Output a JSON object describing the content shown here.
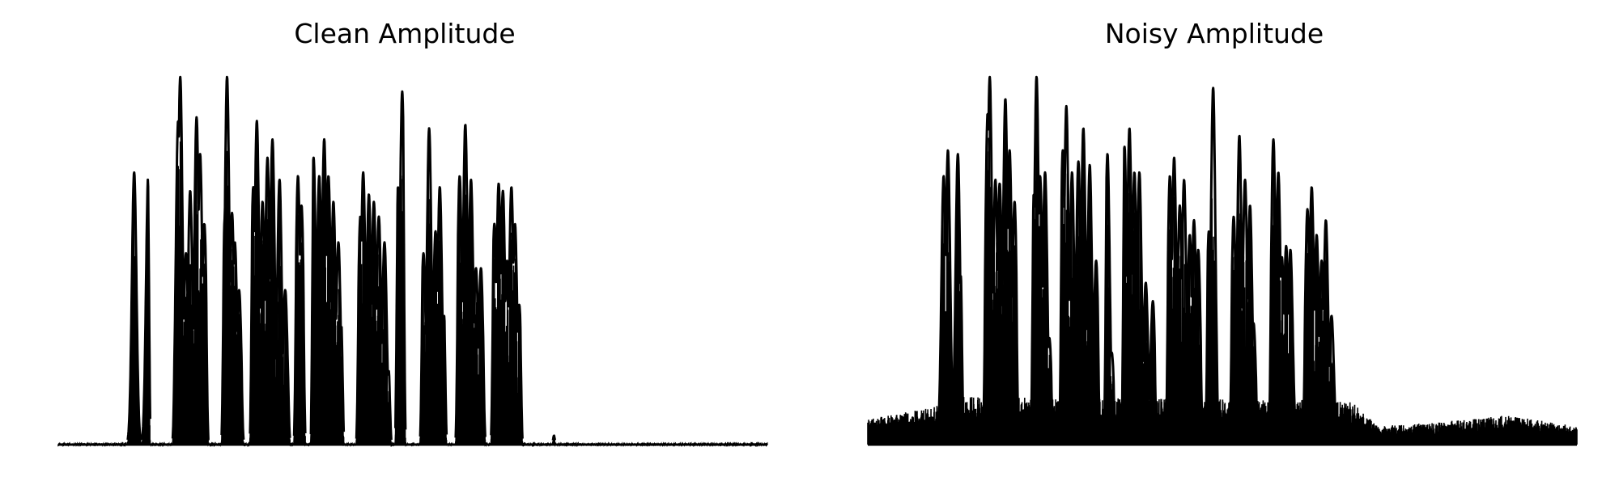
{
  "chart_data": [
    {
      "type": "area",
      "title": "Clean Amplitude",
      "xlabel": "",
      "ylabel": "",
      "axes": "off",
      "grid": false,
      "color": "#000000",
      "x_range": [
        0,
        100
      ],
      "y_range": [
        0,
        1.0
      ],
      "baseline_noise": 0.004,
      "segments": [
        {
          "x": [
            9.2,
            13.0
          ],
          "peaks": [
            [
              10.7,
              0.74
            ],
            [
              12.7,
              0.74
            ],
            [
              13.1,
              0.65
            ]
          ]
        },
        {
          "x": [
            16.0,
            21.2
          ],
          "peaks": [
            [
              16.9,
              0.88
            ],
            [
              17.2,
              1.0
            ],
            [
              18.0,
              0.52
            ],
            [
              18.6,
              0.69
            ],
            [
              19.5,
              0.89
            ],
            [
              20.0,
              0.79
            ],
            [
              20.6,
              0.6
            ]
          ]
        },
        {
          "x": [
            23.0,
            26.2
          ],
          "peaks": [
            [
              23.5,
              0.62
            ],
            [
              23.8,
              1.0
            ],
            [
              24.5,
              0.63
            ],
            [
              24.9,
              0.55
            ],
            [
              25.5,
              0.42
            ]
          ]
        },
        {
          "x": [
            27.0,
            32.8
          ],
          "peaks": [
            [
              27.5,
              0.7
            ],
            [
              28.0,
              0.88
            ],
            [
              28.8,
              0.66
            ],
            [
              29.5,
              0.78
            ],
            [
              30.2,
              0.83
            ],
            [
              31.2,
              0.72
            ],
            [
              32.0,
              0.42
            ]
          ]
        },
        {
          "x": [
            33.2,
            34.9
          ],
          "peaks": [
            [
              33.8,
              0.73
            ],
            [
              34.3,
              0.65
            ]
          ]
        },
        {
          "x": [
            35.6,
            40.3
          ],
          "peaks": [
            [
              36.0,
              0.78
            ],
            [
              36.8,
              0.73
            ],
            [
              37.5,
              0.83
            ],
            [
              38.1,
              0.73
            ],
            [
              38.8,
              0.66
            ],
            [
              39.5,
              0.55
            ],
            [
              40.0,
              0.33
            ]
          ]
        },
        {
          "x": [
            42.0,
            47.0
          ],
          "peaks": [
            [
              42.6,
              0.62
            ],
            [
              43.0,
              0.74
            ],
            [
              43.8,
              0.68
            ],
            [
              44.5,
              0.66
            ],
            [
              45.2,
              0.62
            ],
            [
              46.0,
              0.55
            ],
            [
              46.6,
              0.2
            ]
          ]
        },
        {
          "x": [
            47.5,
            49.0
          ],
          "peaks": [
            [
              47.9,
              0.7
            ],
            [
              48.5,
              0.96
            ]
          ]
        },
        {
          "x": [
            51.0,
            54.8
          ],
          "peaks": [
            [
              51.5,
              0.52
            ],
            [
              52.3,
              0.86
            ],
            [
              53.2,
              0.58
            ],
            [
              53.8,
              0.7
            ],
            [
              54.4,
              0.35
            ]
          ]
        },
        {
          "x": [
            56.0,
            60.3
          ],
          "peaks": [
            [
              56.6,
              0.73
            ],
            [
              57.4,
              0.87
            ],
            [
              58.2,
              0.72
            ],
            [
              58.9,
              0.48
            ],
            [
              59.6,
              0.48
            ]
          ]
        },
        {
          "x": [
            61.0,
            65.5
          ],
          "peaks": [
            [
              61.5,
              0.6
            ],
            [
              62.1,
              0.71
            ],
            [
              62.7,
              0.69
            ],
            [
              63.3,
              0.5
            ],
            [
              63.9,
              0.7
            ],
            [
              64.4,
              0.6
            ],
            [
              65.0,
              0.38
            ]
          ]
        },
        {
          "x": [
            69.6,
            70.2
          ],
          "peaks": [
            [
              69.9,
              0.03
            ]
          ]
        }
      ]
    },
    {
      "type": "area",
      "title": "Noisy Amplitude",
      "xlabel": "",
      "ylabel": "",
      "axes": "off",
      "grid": false,
      "color": "#000000",
      "x_range": [
        0,
        100
      ],
      "y_range": [
        0,
        1.0
      ],
      "baseline_noise": 0.06,
      "noise_profile": [
        [
          0,
          0.07
        ],
        [
          9,
          0.1
        ],
        [
          13,
          0.13
        ],
        [
          68,
          0.12
        ],
        [
          72,
          0.05
        ],
        [
          80,
          0.06
        ],
        [
          90,
          0.08
        ],
        [
          100,
          0.05
        ]
      ],
      "segments": [
        {
          "x": [
            9.5,
            13.5
          ],
          "peaks": [
            [
              10.7,
              0.73
            ],
            [
              11.3,
              0.8
            ],
            [
              12.7,
              0.79
            ],
            [
              13.2,
              0.47
            ]
          ]
        },
        {
          "x": [
            16.2,
            21.3
          ],
          "peaks": [
            [
              16.9,
              0.9
            ],
            [
              17.2,
              1.0
            ],
            [
              18.0,
              0.72
            ],
            [
              18.6,
              0.71
            ],
            [
              19.4,
              0.94
            ],
            [
              20.0,
              0.8
            ],
            [
              20.7,
              0.66
            ]
          ]
        },
        {
          "x": [
            23.0,
            26.2
          ],
          "peaks": [
            [
              23.4,
              0.68
            ],
            [
              23.8,
              1.0
            ],
            [
              24.3,
              0.73
            ],
            [
              25.0,
              0.74
            ],
            [
              25.6,
              0.29
            ]
          ]
        },
        {
          "x": [
            27.0,
            32.8
          ],
          "peaks": [
            [
              27.5,
              0.8
            ],
            [
              28.0,
              0.92
            ],
            [
              28.8,
              0.74
            ],
            [
              29.7,
              0.77
            ],
            [
              30.4,
              0.86
            ],
            [
              31.3,
              0.76
            ],
            [
              32.2,
              0.5
            ]
          ]
        },
        {
          "x": [
            33.3,
            35.0
          ],
          "peaks": [
            [
              33.8,
              0.79
            ],
            [
              34.4,
              0.25
            ]
          ]
        },
        {
          "x": [
            35.8,
            40.8
          ],
          "peaks": [
            [
              36.2,
              0.81
            ],
            [
              36.9,
              0.86
            ],
            [
              37.6,
              0.74
            ],
            [
              38.3,
              0.74
            ],
            [
              39.2,
              0.44
            ],
            [
              40.2,
              0.39
            ]
          ]
        },
        {
          "x": [
            42.0,
            47.3
          ],
          "peaks": [
            [
              42.6,
              0.73
            ],
            [
              43.2,
              0.78
            ],
            [
              44.0,
              0.65
            ],
            [
              44.6,
              0.72
            ],
            [
              45.4,
              0.57
            ],
            [
              46.0,
              0.61
            ],
            [
              46.6,
              0.53
            ]
          ]
        },
        {
          "x": [
            47.6,
            49.6
          ],
          "peaks": [
            [
              48.1,
              0.58
            ],
            [
              48.7,
              0.97
            ]
          ]
        },
        {
          "x": [
            51.0,
            55.1
          ],
          "peaks": [
            [
              51.6,
              0.62
            ],
            [
              52.4,
              0.84
            ],
            [
              53.2,
              0.72
            ],
            [
              53.9,
              0.65
            ],
            [
              54.4,
              0.33
            ]
          ]
        },
        {
          "x": [
            56.5,
            60.6
          ],
          "peaks": [
            [
              57.2,
              0.83
            ],
            [
              57.9,
              0.74
            ],
            [
              58.4,
              0.51
            ],
            [
              59.0,
              0.54
            ],
            [
              59.6,
              0.53
            ]
          ]
        },
        {
          "x": [
            61.3,
            66.2
          ],
          "peaks": [
            [
              62.0,
              0.64
            ],
            [
              62.6,
              0.7
            ],
            [
              63.3,
              0.57
            ],
            [
              64.0,
              0.5
            ],
            [
              64.6,
              0.61
            ],
            [
              65.4,
              0.35
            ]
          ]
        }
      ]
    }
  ]
}
